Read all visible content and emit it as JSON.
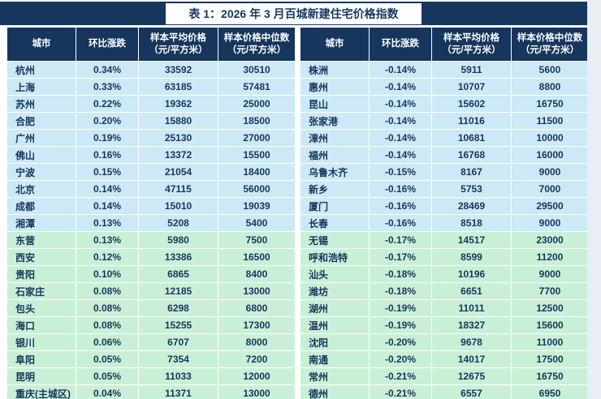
{
  "title": "表 1：2026 年 3 月百城新建住宅价格指数",
  "columns": [
    {
      "label": "城市",
      "sub": ""
    },
    {
      "label": "环比涨跌",
      "sub": ""
    },
    {
      "label": "样本平均价格",
      "sub": "（元/平方米）"
    },
    {
      "label": "样本价格中位数",
      "sub": "（元/平方米）"
    }
  ],
  "colors": {
    "header_bg": "#17365d",
    "row_blue": "#cde9f5",
    "row_green": "#c9f0d6",
    "text": "#17365d"
  },
  "tables": [
    {
      "name": "left",
      "rows": [
        [
          "杭州",
          "0.34%",
          "33592",
          "30510",
          "blue"
        ],
        [
          "上海",
          "0.33%",
          "63185",
          "57481",
          "blue"
        ],
        [
          "苏州",
          "0.22%",
          "19362",
          "25000",
          "blue"
        ],
        [
          "合肥",
          "0.20%",
          "15880",
          "18500",
          "blue"
        ],
        [
          "广州",
          "0.19%",
          "25130",
          "27000",
          "blue"
        ],
        [
          "佛山",
          "0.16%",
          "13372",
          "15500",
          "blue"
        ],
        [
          "宁波",
          "0.15%",
          "21054",
          "18400",
          "blue"
        ],
        [
          "北京",
          "0.14%",
          "47115",
          "56000",
          "blue"
        ],
        [
          "成都",
          "0.14%",
          "15010",
          "19039",
          "blue"
        ],
        [
          "湘潭",
          "0.13%",
          "5208",
          "5400",
          "blue"
        ],
        [
          "东营",
          "0.13%",
          "5980",
          "7500",
          "green"
        ],
        [
          "西安",
          "0.12%",
          "13386",
          "16500",
          "green"
        ],
        [
          "贵阳",
          "0.10%",
          "6865",
          "8400",
          "green"
        ],
        [
          "石家庄",
          "0.08%",
          "12185",
          "13000",
          "green"
        ],
        [
          "包头",
          "0.08%",
          "6298",
          "6800",
          "green"
        ],
        [
          "海口",
          "0.08%",
          "15255",
          "17300",
          "green"
        ],
        [
          "银川",
          "0.06%",
          "6707",
          "8000",
          "green"
        ],
        [
          "阜阳",
          "0.05%",
          "7354",
          "7200",
          "green"
        ],
        [
          "昆明",
          "0.05%",
          "11033",
          "12000",
          "green"
        ],
        [
          "重庆(主城区)",
          "0.04%",
          "11371",
          "13000",
          "green"
        ]
      ]
    },
    {
      "name": "right",
      "rows": [
        [
          "株洲",
          "-0.14%",
          "5911",
          "5600",
          "blue"
        ],
        [
          "惠州",
          "-0.14%",
          "10707",
          "8800",
          "blue"
        ],
        [
          "昆山",
          "-0.14%",
          "15602",
          "16750",
          "blue"
        ],
        [
          "张家港",
          "-0.14%",
          "11016",
          "11500",
          "blue"
        ],
        [
          "漳州",
          "-0.14%",
          "10681",
          "10000",
          "blue"
        ],
        [
          "福州",
          "-0.14%",
          "16768",
          "16000",
          "blue"
        ],
        [
          "乌鲁木齐",
          "-0.15%",
          "8167",
          "9000",
          "blue"
        ],
        [
          "新乡",
          "-0.16%",
          "5753",
          "7000",
          "blue"
        ],
        [
          "厦门",
          "-0.16%",
          "28469",
          "29500",
          "blue"
        ],
        [
          "长春",
          "-0.16%",
          "8518",
          "9000",
          "blue"
        ],
        [
          "无锡",
          "-0.17%",
          "14517",
          "23000",
          "green"
        ],
        [
          "呼和浩特",
          "-0.17%",
          "8599",
          "11200",
          "green"
        ],
        [
          "汕头",
          "-0.18%",
          "10196",
          "9000",
          "green"
        ],
        [
          "潍坊",
          "-0.18%",
          "6651",
          "7700",
          "green"
        ],
        [
          "湖州",
          "-0.19%",
          "11011",
          "12500",
          "green"
        ],
        [
          "温州",
          "-0.19%",
          "18327",
          "15600",
          "green"
        ],
        [
          "沈阳",
          "-0.20%",
          "9678",
          "11000",
          "green"
        ],
        [
          "南通",
          "-0.20%",
          "14017",
          "17500",
          "green"
        ],
        [
          "常州",
          "-0.21%",
          "12675",
          "16750",
          "green"
        ],
        [
          "德州",
          "-0.21%",
          "6557",
          "6950",
          "green"
        ]
      ]
    }
  ]
}
